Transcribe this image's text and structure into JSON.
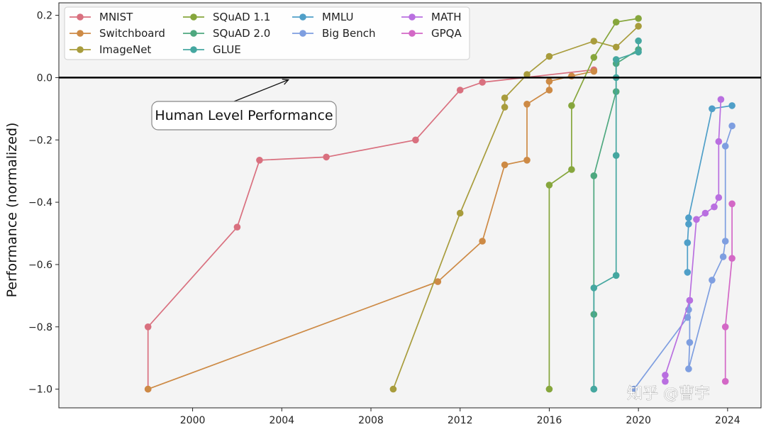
{
  "chart_data": {
    "type": "line",
    "ylabel": "Performance (normalized)",
    "xlabel": "",
    "xlim": [
      1994.0,
      2025.5
    ],
    "ylim": [
      -1.06,
      0.24
    ],
    "x_ticks": [
      2000,
      2004,
      2008,
      2012,
      2016,
      2020,
      2024
    ],
    "y_ticks": [
      0.2,
      0.0,
      -0.2,
      -0.4,
      -0.6,
      -0.8,
      -1.0
    ],
    "y_tick_labels": [
      "0.2",
      "0.0",
      "−0.2",
      "−0.4",
      "−0.6",
      "−0.8",
      "−1.0"
    ],
    "legend_position": "top-left",
    "reference_line": {
      "y": 0.0,
      "label": "Human Level Performance"
    },
    "series": [
      {
        "name": "MNIST",
        "color": "#d9707f",
        "points": [
          [
            1998,
            -1.0
          ],
          [
            1998,
            -0.8
          ],
          [
            2002,
            -0.48
          ],
          [
            2003,
            -0.265
          ],
          [
            2006,
            -0.255
          ],
          [
            2010,
            -0.2
          ],
          [
            2012,
            -0.04
          ],
          [
            2013,
            -0.015
          ],
          [
            2018,
            0.025
          ]
        ]
      },
      {
        "name": "Switchboard",
        "color": "#cd8a45",
        "points": [
          [
            1998,
            -1.0
          ],
          [
            2011,
            -0.655
          ],
          [
            2013,
            -0.525
          ],
          [
            2014,
            -0.28
          ],
          [
            2015,
            -0.265
          ],
          [
            2015,
            -0.085
          ],
          [
            2016,
            -0.04
          ],
          [
            2016,
            -0.012
          ],
          [
            2017,
            0.005
          ],
          [
            2018,
            0.02
          ]
        ]
      },
      {
        "name": "ImageNet",
        "color": "#a89c3c",
        "points": [
          [
            2009,
            -1.0
          ],
          [
            2012,
            -0.435
          ],
          [
            2014,
            -0.095
          ],
          [
            2014,
            -0.065
          ],
          [
            2015,
            0.01
          ],
          [
            2016,
            0.068
          ],
          [
            2018,
            0.117
          ],
          [
            2019,
            0.098
          ],
          [
            2020,
            0.165
          ]
        ]
      },
      {
        "name": "SQuAD 1.1",
        "color": "#86a63c",
        "points": [
          [
            2016,
            -1.0
          ],
          [
            2016,
            -0.345
          ],
          [
            2017,
            -0.295
          ],
          [
            2017,
            -0.09
          ],
          [
            2018,
            0.065
          ],
          [
            2019,
            0.178
          ],
          [
            2020,
            0.19
          ]
        ]
      },
      {
        "name": "SQuAD 2.0",
        "color": "#4ea87f",
        "points": [
          [
            2018,
            -1.0
          ],
          [
            2018,
            -0.76
          ],
          [
            2018,
            -0.315
          ],
          [
            2019,
            -0.045
          ],
          [
            2019,
            0.045
          ],
          [
            2020,
            0.09
          ]
        ]
      },
      {
        "name": "GLUE",
        "color": "#45a7a0",
        "points": [
          [
            2018,
            -1.0
          ],
          [
            2018,
            -0.675
          ],
          [
            2019,
            -0.635
          ],
          [
            2019,
            -0.25
          ],
          [
            2019,
            0.0
          ],
          [
            2019,
            0.058
          ],
          [
            2020,
            0.082
          ],
          [
            2020,
            0.118
          ]
        ]
      },
      {
        "name": "MMLU",
        "color": "#4f9fc8",
        "points": [
          [
            2022.2,
            -0.625
          ],
          [
            2022.2,
            -0.53
          ],
          [
            2022.25,
            -0.47
          ],
          [
            2022.25,
            -0.45
          ],
          [
            2023.3,
            -0.1
          ],
          [
            2024.2,
            -0.09
          ]
        ]
      },
      {
        "name": "Big Bench",
        "color": "#7e9ee0",
        "points": [
          [
            2019.8,
            -1.0
          ],
          [
            2022.2,
            -0.77
          ],
          [
            2022.25,
            -0.745
          ],
          [
            2022.3,
            -0.715
          ],
          [
            2022.3,
            -0.85
          ],
          [
            2022.25,
            -0.935
          ],
          [
            2023.3,
            -0.65
          ],
          [
            2023.8,
            -0.575
          ],
          [
            2023.9,
            -0.525
          ],
          [
            2023.9,
            -0.22
          ],
          [
            2024.2,
            -0.155
          ]
        ]
      },
      {
        "name": "MATH",
        "color": "#b96fe0",
        "points": [
          [
            2021.2,
            -0.975
          ],
          [
            2021.2,
            -0.955
          ],
          [
            2022.3,
            -0.715
          ],
          [
            2022.6,
            -0.455
          ],
          [
            2023.0,
            -0.435
          ],
          [
            2023.4,
            -0.415
          ],
          [
            2023.6,
            -0.385
          ],
          [
            2023.6,
            -0.205
          ],
          [
            2023.7,
            -0.07
          ]
        ]
      },
      {
        "name": "GPQA",
        "color": "#d368c6",
        "points": [
          [
            2023.9,
            -0.975
          ],
          [
            2023.9,
            -0.8
          ],
          [
            2024.2,
            -0.58
          ],
          [
            2024.2,
            -0.405
          ]
        ]
      }
    ]
  },
  "annotation": {
    "text": "Human Level Performance",
    "arrow_target": [
      2004.3,
      0.0
    ],
    "box_anchor": [
      2004.3,
      -0.115
    ]
  },
  "watermark": {
    "text": "知乎 @曹宇"
  }
}
